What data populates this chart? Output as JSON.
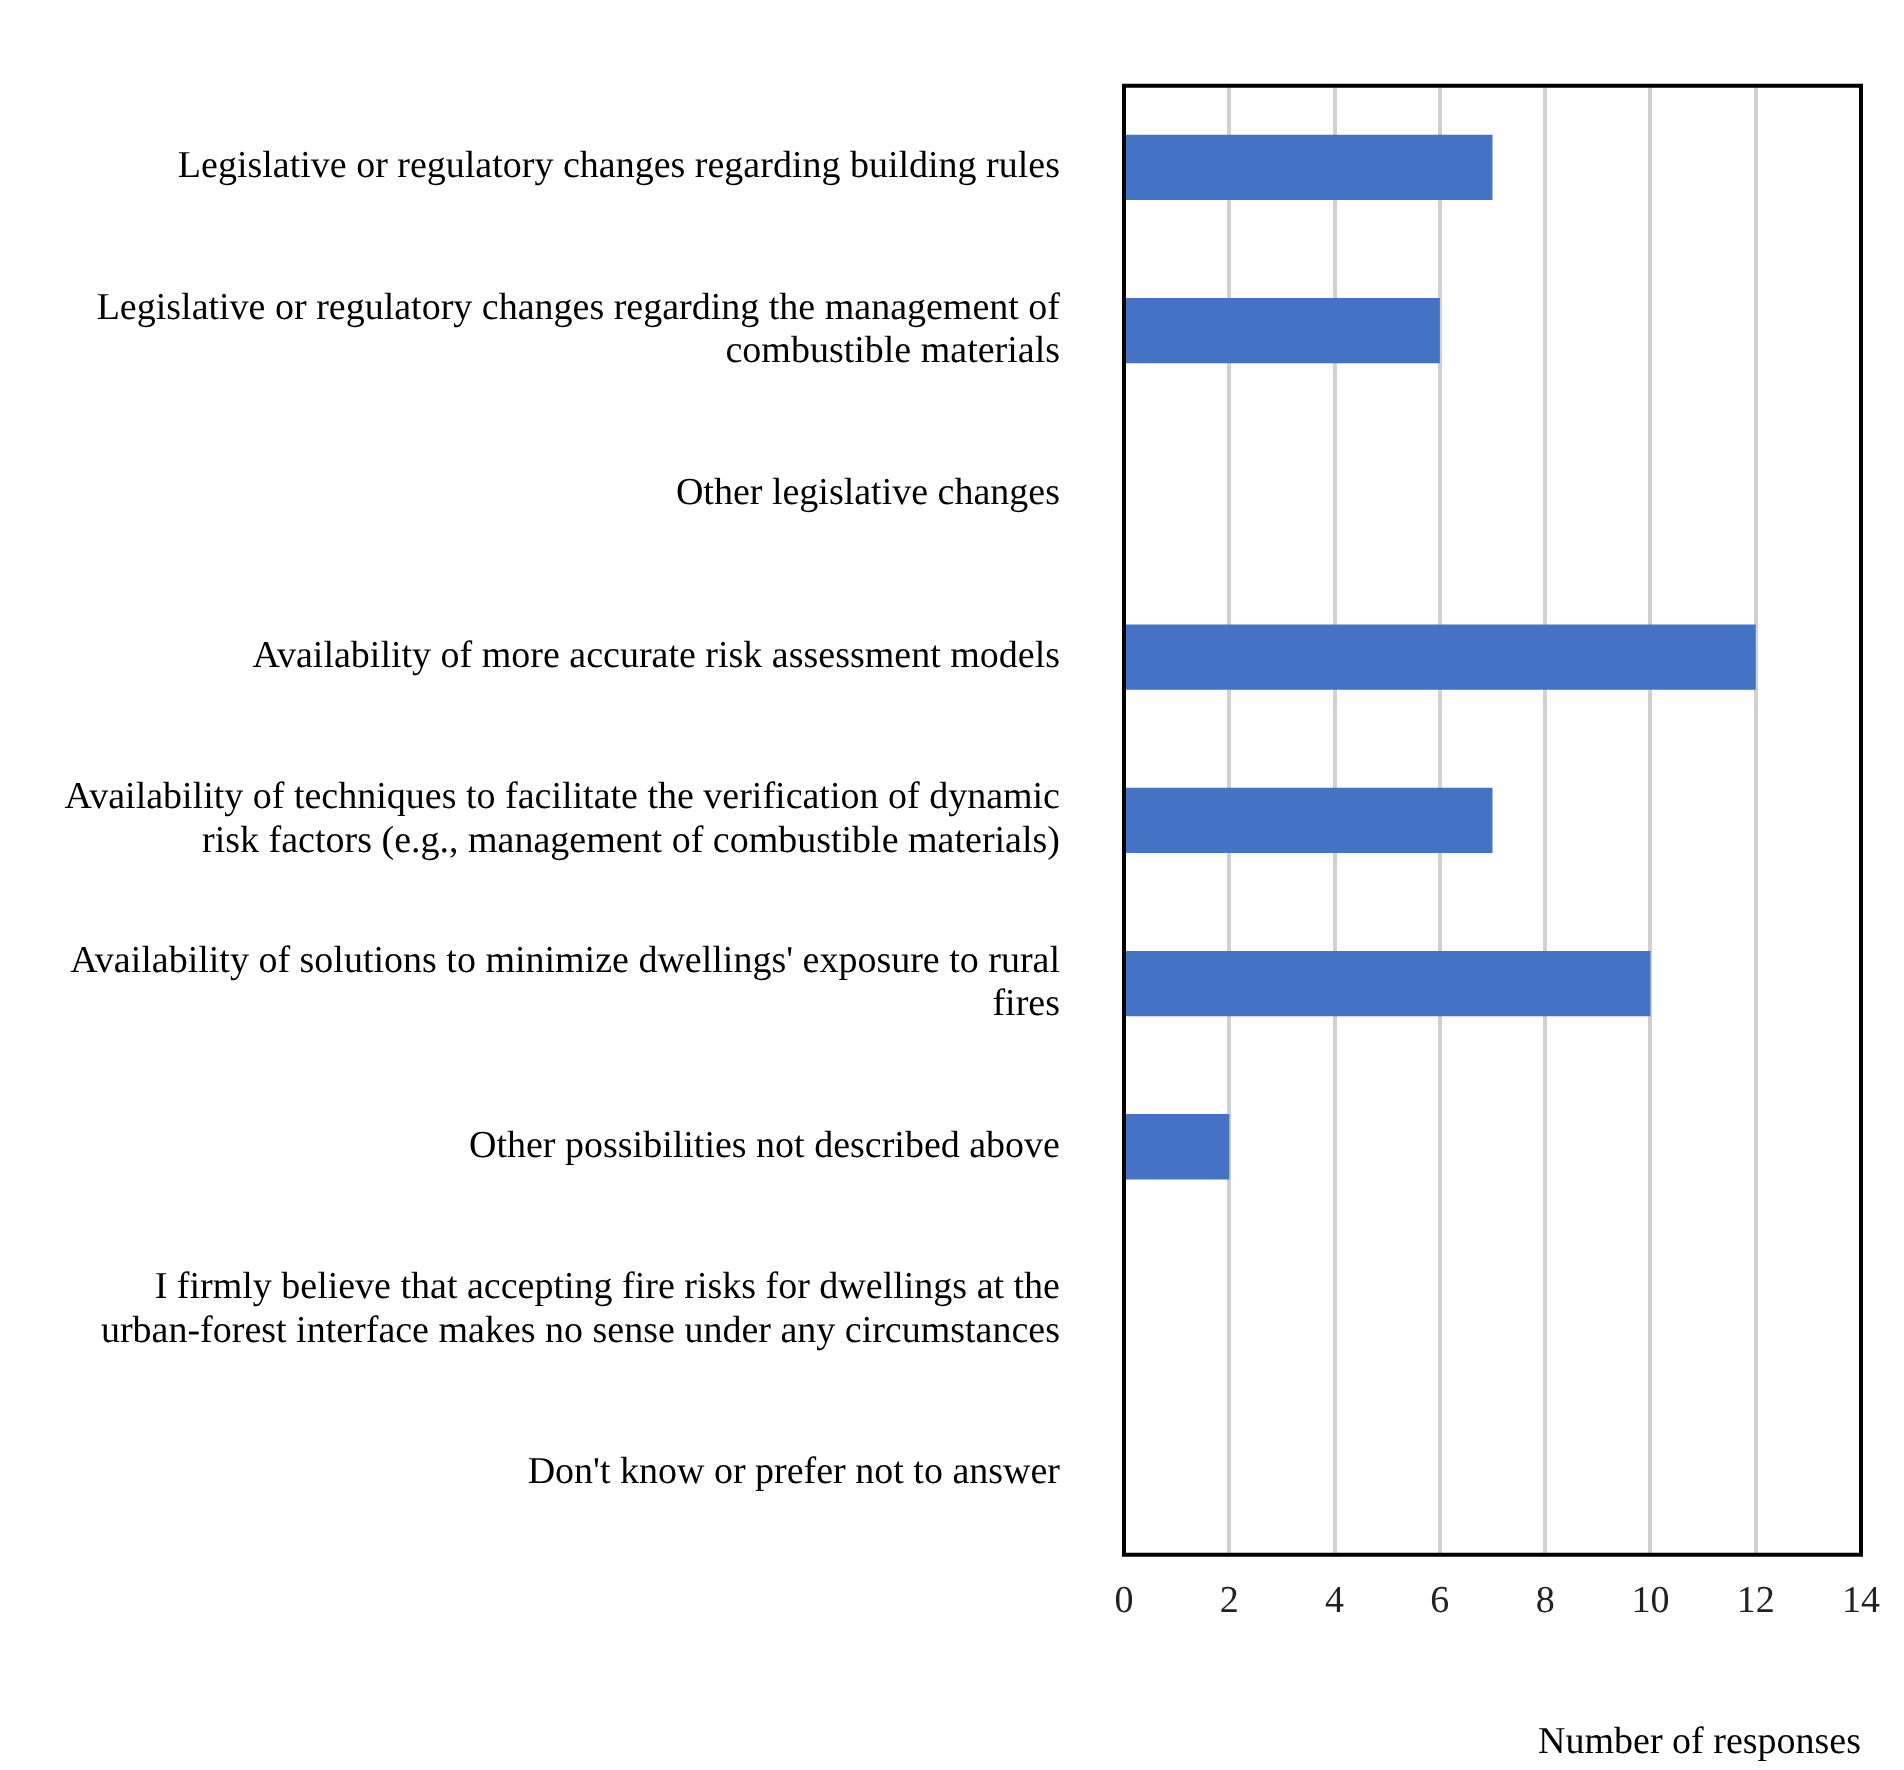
{
  "chart_data": {
    "type": "bar",
    "orientation": "horizontal",
    "xlabel": "Number of responses",
    "categories": [
      "Legislative or regulatory changes regarding building rules",
      "Legislative or regulatory changes regarding the management of combustible materials",
      "Other legislative changes",
      "Availability of more accurate risk assessment models",
      "Availability of techniques to facilitate the verification of dynamic risk factors (e.g., management of combustible materials)",
      "Availability of solutions to minimize dwellings' exposure to rural fires",
      "Other possibilities not described above",
      "I firmly believe that accepting fire risks for dwellings at the urban-forest interface makes no sense under any circumstances",
      "Don't know or prefer not to answer"
    ],
    "values": [
      7,
      6,
      0,
      12,
      7,
      10,
      2,
      0,
      0
    ],
    "color": "#4472c4",
    "xlim": [
      0,
      14
    ],
    "xticks": [
      0,
      2,
      4,
      6,
      8,
      10,
      12,
      14
    ],
    "grid": "x",
    "legend": false
  }
}
